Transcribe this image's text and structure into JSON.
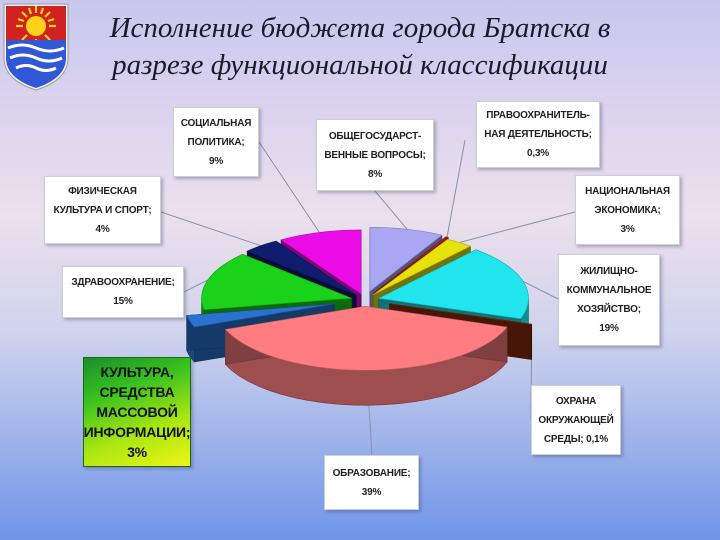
{
  "title_lines": [
    "Исполнение бюджета города Братска в",
    "разрезе функциональной классификации"
  ],
  "logo": {
    "name": "bratsk-coat-of-arms",
    "colors": [
      "#cf2020",
      "#ffd21a",
      "#2f57d6",
      "#ffffff"
    ]
  },
  "chart_data": {
    "type": "pie",
    "title": "Исполнение бюджета города Братска в разрезе функциональной классификации",
    "style": "3d-exploded",
    "slices": [
      {
        "label": "ОБЩЕГОСУДАРСТВЕННЫЕ ВОПРОСЫ",
        "value": 8,
        "color": "#a9a6f2"
      },
      {
        "label": "ПРАВООХРАНИТЕЛЬНАЯ ДЕЯТЕЛЬНОСТЬ",
        "value": 0.3,
        "color": "#b41d1d"
      },
      {
        "label": "НАЦИОНАЛЬНАЯ ЭКОНОМИКА",
        "value": 3,
        "color": "#e8e20c"
      },
      {
        "label": "ЖИЛИЩНО-КОММУНАЛЬНОЕ ХОЗЯЙСТВО",
        "value": 19,
        "color": "#21e4ec"
      },
      {
        "label": "ОХРАНА ОКРУЖАЮЩЕЙ СРЕДЫ",
        "value": 0.1,
        "color": "#8b2b0c"
      },
      {
        "label": "ОБРАЗОВАНИЕ",
        "value": 39,
        "color": "#ff7d80"
      },
      {
        "label": "КУЛЬТУРА, СРЕДСТВА МАССОВОЙ ИНФОРМАЦИИ",
        "value": 3,
        "color": "#2a72cf"
      },
      {
        "label": "ЗДРАВООХРАНЕНИЕ",
        "value": 15,
        "color": "#1ad21a"
      },
      {
        "label": "ФИЗИЧЕСКАЯ КУЛЬТУРА И СПОРТ",
        "value": 4,
        "color": "#101c6e"
      },
      {
        "label": "СОЦИАЛЬНАЯ ПОЛИТИКА",
        "value": 9,
        "color": "#ea0be6"
      }
    ]
  },
  "labels": {
    "general": {
      "lines": [
        "ОБЩЕГОСУДАРСТ-",
        "ВЕННЫЕ ВОПРОСЫ;",
        "8%"
      ]
    },
    "law": {
      "lines": [
        "ПРАВООХРАНИТЕЛЬ-",
        "НАЯ ДЕЯТЕЛЬНОСТЬ;",
        "0,3%"
      ]
    },
    "economy": {
      "lines": [
        "НАЦИОНАЛЬНАЯ",
        "ЭКОНОМИКА;",
        "3%"
      ]
    },
    "housing": {
      "lines": [
        "ЖИЛИЩНО-",
        "КОММУНАЛЬНОЕ",
        "ХОЗЯЙСТВО;",
        "19%"
      ]
    },
    "environment": {
      "lines": [
        "ОХРАНА",
        "ОКРУЖАЮЩЕЙ",
        "СРЕДЫ; 0,1%"
      ]
    },
    "education": {
      "lines": [
        "ОБРАЗОВАНИЕ;",
        "39%"
      ]
    },
    "culture": {
      "lines": [
        "КУЛЬТУРА,",
        "СРЕДСТВА",
        "МАССОВОЙ",
        "ИНФОРМАЦИИ;",
        "3%"
      ]
    },
    "health": {
      "lines": [
        "ЗДРАВООХРАНЕНИЕ;",
        "15%"
      ]
    },
    "sport": {
      "lines": [
        "ФИЗИЧЕСКАЯ",
        "КУЛЬТУРА И СПОРТ;",
        "4%"
      ]
    },
    "social": {
      "lines": [
        "СОЦИАЛЬНАЯ",
        "ПОЛИТИКА;",
        "9%"
      ]
    }
  }
}
